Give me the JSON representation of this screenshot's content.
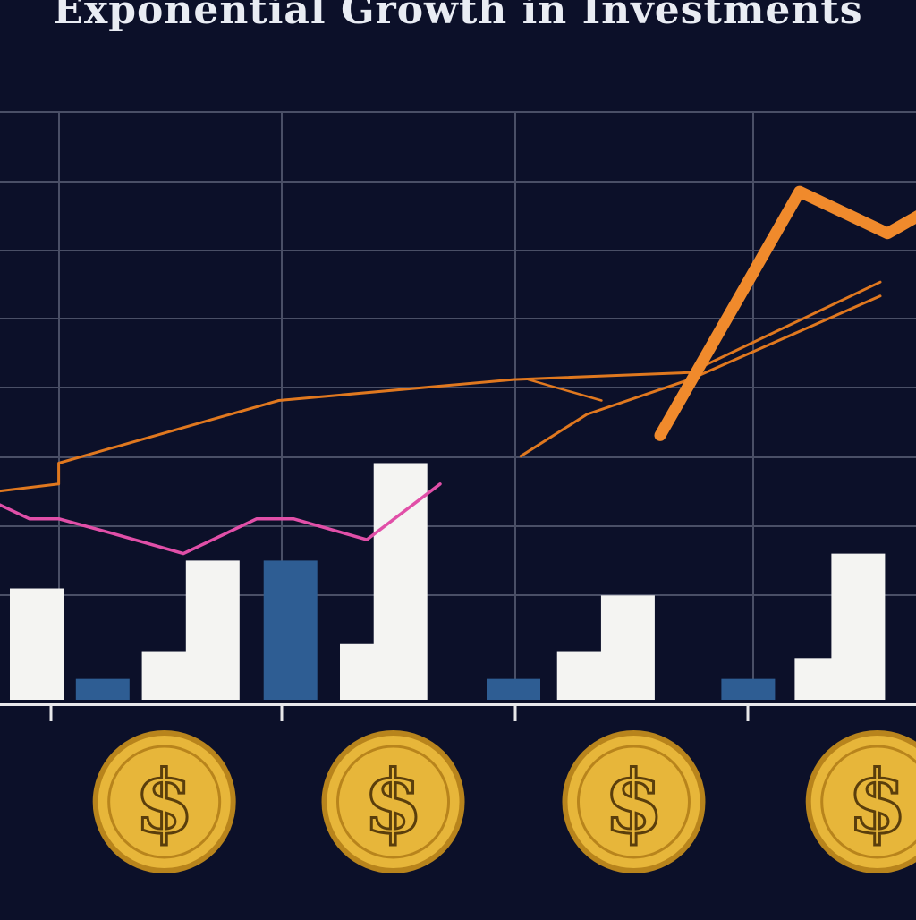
{
  "title": "Exponential Growth in Investments",
  "colors": {
    "background": "#0c1029",
    "grid": "#4a4f66",
    "bar_white": "#f4f4f2",
    "bar_blue": "#2e5d93",
    "line_orange": "#f08a2c",
    "line_orange_thin": "#e0781f",
    "line_pink": "#e14fa8",
    "coin": "#e7b63a",
    "coin_edge": "#b8841c"
  },
  "chart_data": {
    "type": "bar",
    "title": "Exponential Growth in Investments",
    "xlabel": "",
    "ylabel": "",
    "grid": true,
    "legend": "none",
    "ylim": [
      0,
      9
    ],
    "bars": [
      {
        "x": 0.25,
        "value": 1.6,
        "color": "white"
      },
      {
        "x": 0.7,
        "value": 0.3,
        "color": "blue"
      },
      {
        "x": 1.15,
        "value": 0.7,
        "color": "white"
      },
      {
        "x": 1.45,
        "value": 2.0,
        "color": "white"
      },
      {
        "x": 1.98,
        "value": 2.0,
        "color": "blue"
      },
      {
        "x": 2.5,
        "value": 0.8,
        "color": "white"
      },
      {
        "x": 2.73,
        "value": 3.4,
        "color": "white"
      },
      {
        "x": 3.5,
        "value": 0.3,
        "color": "blue"
      },
      {
        "x": 3.98,
        "value": 0.7,
        "color": "white"
      },
      {
        "x": 4.28,
        "value": 1.5,
        "color": "white"
      },
      {
        "x": 5.1,
        "value": 0.3,
        "color": "blue"
      },
      {
        "x": 5.6,
        "value": 0.6,
        "color": "white"
      },
      {
        "x": 5.85,
        "value": 2.1,
        "color": "white"
      }
    ],
    "series": [
      {
        "style": "thin-orange",
        "points": [
          [
            0.0,
            3.0
          ],
          [
            0.4,
            3.1
          ],
          [
            0.4,
            3.4
          ],
          [
            1.9,
            4.3
          ],
          [
            3.5,
            4.6
          ],
          [
            4.7,
            4.7
          ],
          [
            6.0,
            6.0
          ]
        ]
      },
      {
        "style": "thin-orange-2",
        "points": [
          [
            3.55,
            3.5
          ],
          [
            4.0,
            4.1
          ],
          [
            4.7,
            4.6
          ],
          [
            6.0,
            5.8
          ]
        ]
      },
      {
        "style": "thin-orange-3",
        "points": [
          [
            3.6,
            4.6
          ],
          [
            4.1,
            4.3
          ]
        ]
      },
      {
        "style": "thick-orange",
        "points": [
          [
            4.5,
            3.8
          ],
          [
            5.45,
            7.3
          ],
          [
            6.05,
            6.7
          ],
          [
            6.3,
            7.0
          ]
        ]
      },
      {
        "style": "pink",
        "points": [
          [
            0.0,
            2.8
          ],
          [
            0.2,
            2.6
          ],
          [
            0.4,
            2.6
          ],
          [
            0.75,
            2.4
          ],
          [
            1.25,
            2.1
          ],
          [
            1.75,
            2.6
          ],
          [
            2.0,
            2.6
          ],
          [
            2.5,
            2.3
          ],
          [
            3.0,
            3.1
          ]
        ]
      }
    ],
    "coins": [
      {
        "x": 1.12,
        "label": "$"
      },
      {
        "x": 2.68,
        "label": "$"
      },
      {
        "x": 4.32,
        "label": "$"
      },
      {
        "x": 5.98,
        "label": "$"
      }
    ]
  }
}
